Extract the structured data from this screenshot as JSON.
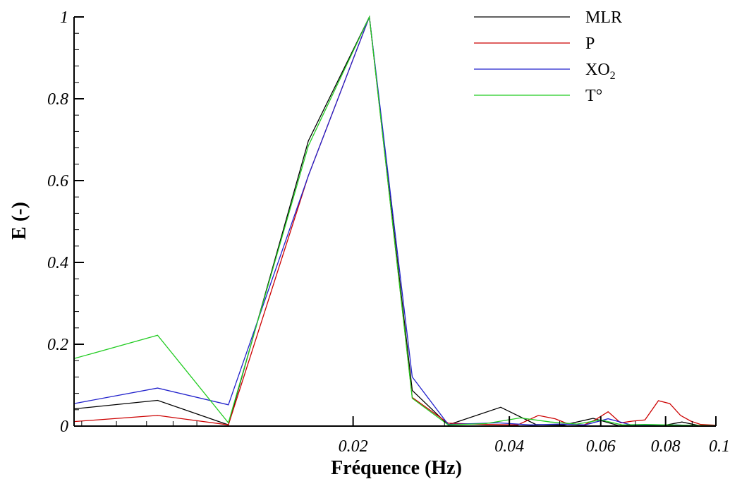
{
  "chart_data": {
    "type": "line",
    "xlabel": "Fréquence (Hz)",
    "ylabel": "E (-)",
    "x_scale": "log",
    "xlim": [
      0.0058,
      0.1
    ],
    "ylim": [
      0,
      1
    ],
    "x_tick_labels": [
      "0.02",
      "0.04",
      "0.06",
      "0.08",
      "0.1"
    ],
    "x_tick_values": [
      0.02,
      0.04,
      0.06,
      0.08,
      0.1
    ],
    "y_tick_labels": [
      "0",
      "0.2",
      "0.4",
      "0.6",
      "0.8",
      "1"
    ],
    "y_tick_values": [
      0,
      0.2,
      0.4,
      0.6,
      0.8,
      1
    ],
    "legend_position": "top-right",
    "grid": false,
    "series": [
      {
        "name": "MLR",
        "name_sub": "",
        "name_suffix": "",
        "color": "#000000",
        "x": [
          0.0058,
          0.0084,
          0.0115,
          0.0164,
          0.0215,
          0.026,
          0.0305,
          0.0385,
          0.045,
          0.051,
          0.058,
          0.065,
          0.072,
          0.079,
          0.086,
          0.093,
          0.1
        ],
        "y": [
          0.042,
          0.063,
          0.003,
          0.697,
          1.0,
          0.087,
          0.003,
          0.046,
          0.004,
          0.003,
          0.019,
          0.001,
          0.002,
          0.001,
          0.01,
          0.001,
          0.001
        ]
      },
      {
        "name": "P",
        "name_sub": "",
        "name_suffix": "",
        "color": "#cc0000",
        "x": [
          0.0058,
          0.0084,
          0.0115,
          0.0164,
          0.0215,
          0.026,
          0.0305,
          0.036,
          0.0415,
          0.0455,
          0.049,
          0.052,
          0.0555,
          0.0585,
          0.062,
          0.0655,
          0.069,
          0.073,
          0.0775,
          0.0815,
          0.0855,
          0.0895,
          0.0935,
          0.1
        ],
        "y": [
          0.011,
          0.026,
          0.003,
          0.612,
          1.0,
          0.07,
          0.007,
          0.004,
          0.003,
          0.026,
          0.018,
          0.005,
          0.002,
          0.015,
          0.035,
          0.008,
          0.012,
          0.015,
          0.062,
          0.055,
          0.026,
          0.012,
          0.004,
          0.002
        ]
      },
      {
        "name": "XO",
        "name_sub": "2",
        "name_suffix": "",
        "color": "#2222cc",
        "x": [
          0.0058,
          0.0084,
          0.0115,
          0.0164,
          0.0215,
          0.026,
          0.0305,
          0.038,
          0.044,
          0.05,
          0.056,
          0.062,
          0.069,
          0.076,
          0.084,
          0.092,
          0.1
        ],
        "y": [
          0.055,
          0.093,
          0.052,
          0.612,
          1.0,
          0.12,
          0.004,
          0.008,
          0.003,
          0.005,
          0.003,
          0.018,
          0.002,
          0.001,
          0.003,
          0.001,
          0.001
        ]
      },
      {
        "name": "T",
        "name_sub": "",
        "name_suffix": "°",
        "color": "#22cc22",
        "x": [
          0.0058,
          0.0084,
          0.0115,
          0.0164,
          0.0215,
          0.026,
          0.0305,
          0.036,
          0.042,
          0.048,
          0.054,
          0.06,
          0.066,
          0.073,
          0.08,
          0.088,
          0.1
        ],
        "y": [
          0.165,
          0.222,
          0.008,
          0.685,
          1.0,
          0.068,
          0.003,
          0.006,
          0.02,
          0.01,
          0.005,
          0.015,
          0.003,
          0.004,
          0.003,
          0.002,
          0.001
        ]
      }
    ]
  }
}
